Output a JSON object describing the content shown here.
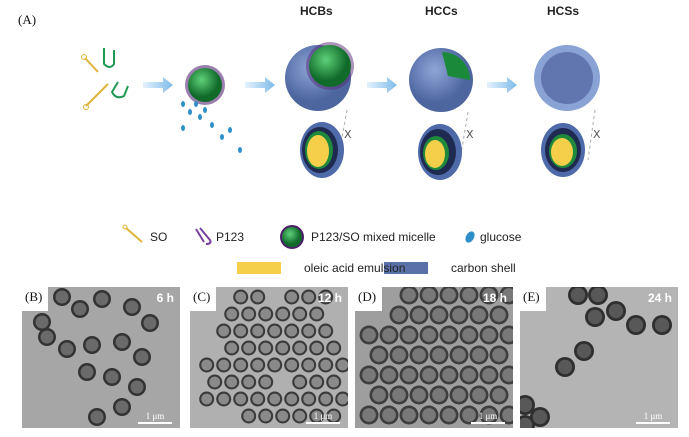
{
  "panel_a": {
    "label": "(A)",
    "stages": [
      "HCBs",
      "HCCs",
      "HCSs"
    ]
  },
  "legend": {
    "so": "SO",
    "p123": "P123",
    "micelle": "P123/SO mixed micelle",
    "glucose": "glucose",
    "oleic": "oleic acid emulsion",
    "carbon": "carbon shell"
  },
  "colors": {
    "oleic": "#f5cf4a",
    "carbon": "#5b70a8",
    "micelle": "#1f8a3c",
    "glucose": "#2e8fc9",
    "so": "#e0b43a",
    "p123": "#7a3fa0",
    "arrow": "#8cc3ec"
  },
  "micrographs": [
    {
      "label": "(B)",
      "time": "6 h",
      "scale": "1 μm"
    },
    {
      "label": "(C)",
      "time": "12 h",
      "scale": "1 μm"
    },
    {
      "label": "(D)",
      "time": "18 h",
      "scale": "1 μm"
    },
    {
      "label": "(E)",
      "time": "24 h",
      "scale": "1 μm"
    }
  ]
}
